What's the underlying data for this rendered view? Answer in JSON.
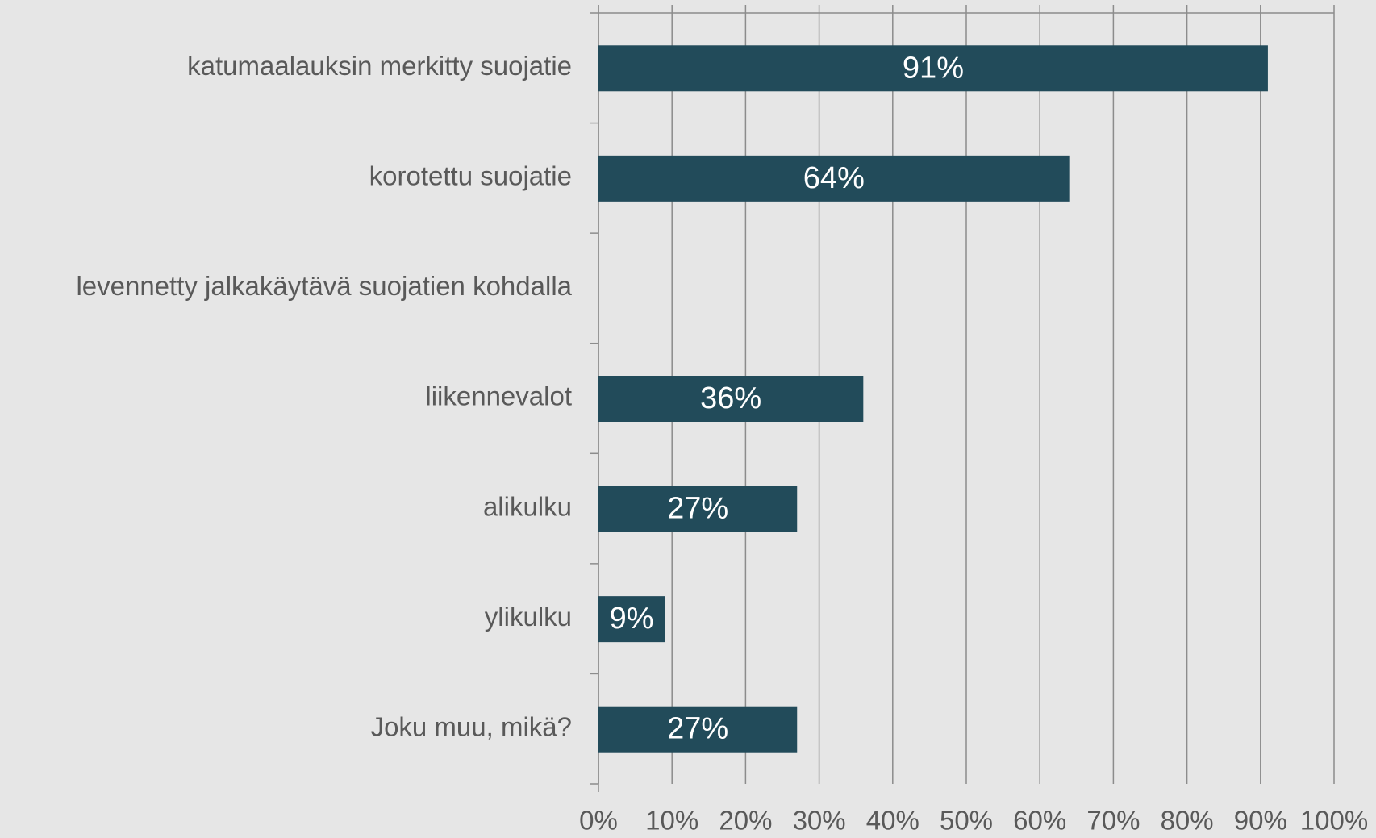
{
  "chart_data": {
    "type": "bar",
    "orientation": "horizontal",
    "categories": [
      "katumaalauksin merkitty suojatie",
      "korotettu suojatie",
      "levennetty jalkakäytävä suojatien kohdalla",
      "liikennevalot",
      "alikulku",
      "ylikulku",
      "Joku muu, mikä?"
    ],
    "values": [
      91,
      64,
      null,
      36,
      27,
      9,
      27
    ],
    "value_labels": [
      "91%",
      "64%",
      null,
      "36%",
      "27%",
      "9%",
      "27%"
    ],
    "color": "#224b5a",
    "xlim": [
      0,
      100
    ],
    "xticks": [
      {
        "value": 0,
        "label": "0%"
      },
      {
        "value": 10,
        "label": "10%"
      },
      {
        "value": 20,
        "label": "20%"
      },
      {
        "value": 30,
        "label": "30%"
      },
      {
        "value": 40,
        "label": "40%"
      },
      {
        "value": 50,
        "label": "50%"
      },
      {
        "value": 60,
        "label": "60%"
      },
      {
        "value": 70,
        "label": "70%"
      },
      {
        "value": 80,
        "label": "80%"
      },
      {
        "value": 90,
        "label": "90%"
      },
      {
        "value": 100,
        "label": "100%"
      }
    ],
    "grid": true
  }
}
